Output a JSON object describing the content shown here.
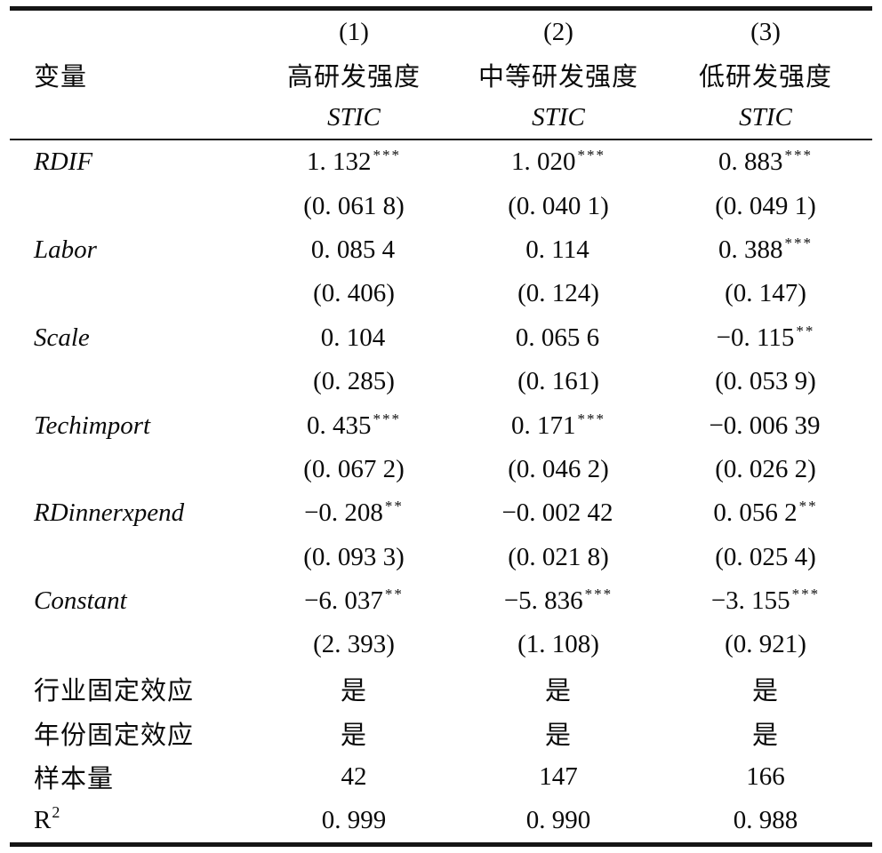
{
  "page": {
    "background_color": "#ffffff",
    "text_color": "#0a0a0a",
    "rule_color": "#151515"
  },
  "header": {
    "numbers": [
      "(1)",
      "(2)",
      "(3)"
    ],
    "variable_label": "变量",
    "groups": [
      "高研发强度",
      "中等研发强度",
      "低研发强度"
    ],
    "outcome": [
      "STIC",
      "STIC",
      "STIC"
    ]
  },
  "rows": [
    {
      "label": "RDIF",
      "v": [
        "1. 132",
        "1. 020",
        "0. 883"
      ],
      "stars": [
        "***",
        "***",
        "***"
      ],
      "se": [
        "(0. 061 8)",
        "(0. 040 1)",
        "(0. 049 1)"
      ]
    },
    {
      "label": "Labor",
      "v": [
        "0. 085 4",
        "0. 114",
        "0. 388"
      ],
      "stars": [
        "",
        "",
        "***"
      ],
      "se": [
        "(0. 406)",
        "(0. 124)",
        "(0. 147)"
      ]
    },
    {
      "label": "Scale",
      "v": [
        "0. 104",
        "0. 065 6",
        "−0. 115"
      ],
      "stars": [
        "",
        "",
        "**"
      ],
      "se": [
        "(0. 285)",
        "(0. 161)",
        "(0. 053 9)"
      ]
    },
    {
      "label": "Techimport",
      "v": [
        "0. 435",
        "0. 171",
        "−0. 006 39"
      ],
      "stars": [
        "***",
        "***",
        ""
      ],
      "se": [
        "(0. 067 2)",
        "(0. 046 2)",
        "(0. 026 2)"
      ]
    },
    {
      "label": "RDinnerxpend",
      "v": [
        "−0. 208",
        "−0. 002 42",
        "0. 056 2"
      ],
      "stars": [
        "**",
        "",
        "**"
      ],
      "se": [
        "(0. 093 3)",
        "(0. 021 8)",
        "(0. 025 4)"
      ]
    },
    {
      "label": "Constant",
      "v": [
        "−6. 037",
        "−5. 836",
        "−3. 155"
      ],
      "stars": [
        "**",
        "***",
        "***"
      ],
      "se": [
        "(2. 393)",
        "(1. 108)",
        "(0. 921)"
      ]
    }
  ],
  "footer": [
    {
      "label": "行业固定效应",
      "v": [
        "是",
        "是",
        "是"
      ]
    },
    {
      "label": "年份固定效应",
      "v": [
        "是",
        "是",
        "是"
      ]
    },
    {
      "label": "样本量",
      "v": [
        "42",
        "147",
        "166"
      ]
    },
    {
      "label_base": "R",
      "label_sup": "2",
      "v": [
        "0. 999",
        "0. 990",
        "0. 988"
      ]
    }
  ]
}
